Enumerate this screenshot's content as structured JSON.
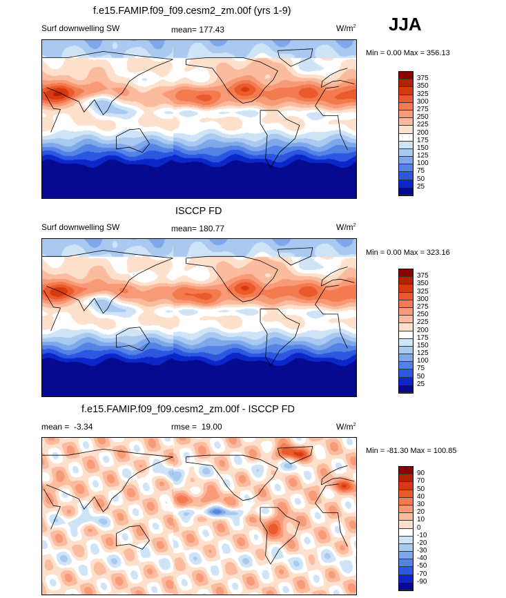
{
  "season": "JJA",
  "panels": [
    {
      "title": "f.e15.FAMIP.f09_f09.cesm2_zm.00f (yrs 1-9)",
      "variable": "Surf downwelling SW",
      "stat1": "mean=",
      "stat1_value": "177.43",
      "units": "W/m",
      "units_sup": "2",
      "minmax": "Min =   0.00 Max = 356.13"
    },
    {
      "title": "ISCCP FD",
      "variable": "Surf downwelling SW",
      "stat1": "mean=",
      "stat1_value": "180.77",
      "units": "W/m",
      "units_sup": "2",
      "minmax": "Min =   0.00 Max = 323.16"
    },
    {
      "title": "f.e15.FAMIP.f09_f09.cesm2_zm.00f - ISCCP FD",
      "variable": "",
      "stat1": "mean =",
      "stat1_value": "-3.34",
      "stat2": "rmse =",
      "stat2_value": "19.00",
      "units": "W/m",
      "units_sup": "2",
      "minmax": "Min = -81.30 Max = 100.85"
    }
  ],
  "colorbar_sw": {
    "labels": [
      "375",
      "350",
      "325",
      "300",
      "275",
      "250",
      "225",
      "200",
      "175",
      "150",
      "125",
      "100",
      "75",
      "50",
      "25"
    ],
    "colors": [
      "#8b0000",
      "#b22200",
      "#d83a10",
      "#ea5a2a",
      "#f47a50",
      "#f79a77",
      "#fbbb9e",
      "#fde0cc",
      "#ffffff",
      "#cfe3f7",
      "#a9c9f1",
      "#7ea8ea",
      "#5483e6",
      "#2d57e0",
      "#0b26c9",
      "#050a8f"
    ]
  },
  "colorbar_diff": {
    "labels": [
      "90",
      "70",
      "50",
      "40",
      "30",
      "20",
      "10",
      "0",
      "-10",
      "-20",
      "-30",
      "-40",
      "-50",
      "-70",
      "-90"
    ],
    "colors": [
      "#8b0000",
      "#b22200",
      "#d83a10",
      "#ea5a2a",
      "#f47a50",
      "#f79a77",
      "#fbbb9e",
      "#fde0cc",
      "#ffffff",
      "#cfe3f7",
      "#a9c9f1",
      "#7ea8ea",
      "#5483e6",
      "#2d57e0",
      "#0b26c9",
      "#050a8f"
    ]
  },
  "chart_data": [
    {
      "type": "heatmap",
      "title": "f.e15.FAMIP.f09_f09.cesm2_zm.00f (yrs 1-9)",
      "subtitle": "Surf downwelling SW",
      "season": "JJA",
      "mean": 177.43,
      "min": 0.0,
      "max": 356.13,
      "units": "W/m2",
      "levels": [
        25,
        50,
        75,
        100,
        125,
        150,
        175,
        200,
        225,
        250,
        275,
        300,
        325,
        350,
        375
      ]
    },
    {
      "type": "heatmap",
      "title": "ISCCP FD",
      "subtitle": "Surf downwelling SW",
      "season": "JJA",
      "mean": 180.77,
      "min": 0.0,
      "max": 323.16,
      "units": "W/m2",
      "levels": [
        25,
        50,
        75,
        100,
        125,
        150,
        175,
        200,
        225,
        250,
        275,
        300,
        325,
        350,
        375
      ]
    },
    {
      "type": "heatmap",
      "title": "f.e15.FAMIP.f09_f09.cesm2_zm.00f - ISCCP FD",
      "season": "JJA",
      "mean": -3.34,
      "rmse": 19.0,
      "min": -81.3,
      "max": 100.85,
      "units": "W/m2",
      "levels": [
        -90,
        -70,
        -50,
        -40,
        -30,
        -20,
        -10,
        0,
        10,
        20,
        30,
        40,
        50,
        70,
        90
      ]
    }
  ]
}
